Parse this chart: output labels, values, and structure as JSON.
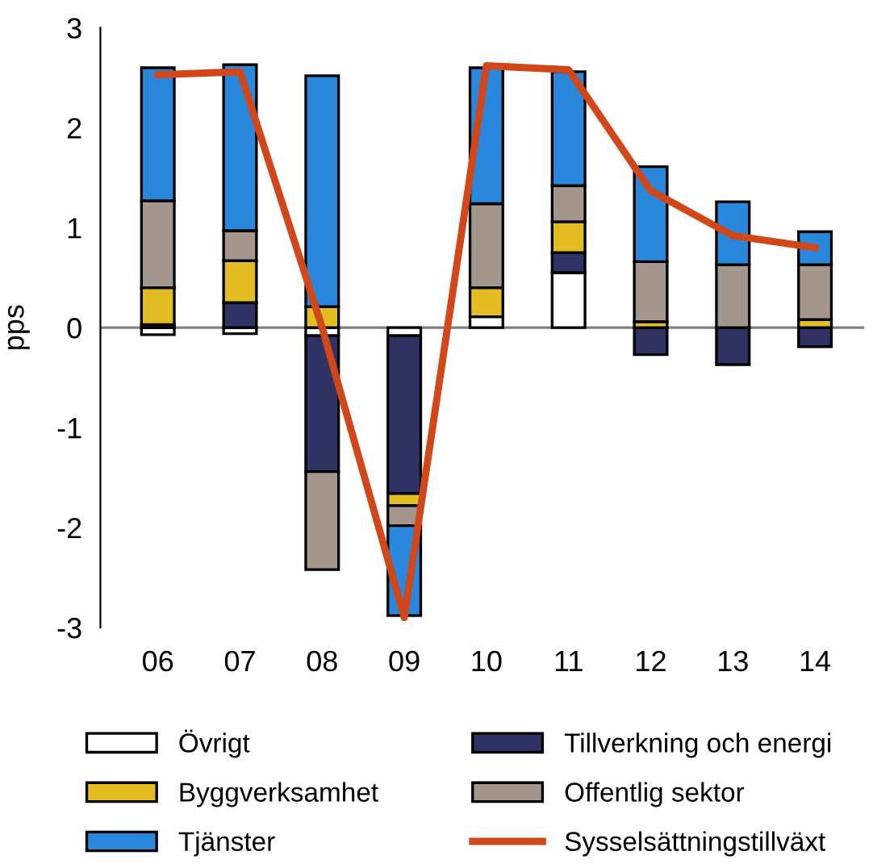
{
  "chart_data": {
    "type": "bar",
    "stacked": true,
    "ylabel": "pps",
    "categories": [
      "06",
      "07",
      "08",
      "09",
      "10",
      "11",
      "12",
      "13",
      "14"
    ],
    "ylim": [
      -3,
      3
    ],
    "yticks": [
      -3,
      -2,
      -1,
      0,
      1,
      2,
      3
    ],
    "grid": false,
    "legend": "bottom",
    "ref_lines": [
      {
        "axis": "y",
        "value": 0,
        "color": "#808080"
      }
    ],
    "series": [
      {
        "name": "Övrigt",
        "color": "#ffffff",
        "values": [
          -0.07,
          -0.06,
          -0.08,
          -0.08,
          0.11,
          0.55,
          null,
          null,
          null
        ]
      },
      {
        "name": "Tillverkning och energi",
        "color": "#2e3363",
        "values": [
          0.03,
          0.25,
          -1.36,
          -1.58,
          null,
          0.2,
          -0.27,
          -0.37,
          -0.19
        ]
      },
      {
        "name": "Byggverksamhet",
        "color": "#e3bd22",
        "values": [
          0.37,
          0.42,
          0.21,
          -0.12,
          0.29,
          0.31,
          0.06,
          null,
          0.08
        ]
      },
      {
        "name": "Offentlig sektor",
        "color": "#a3968d",
        "values": [
          0.87,
          0.3,
          -0.98,
          -0.2,
          0.84,
          0.36,
          0.6,
          0.63,
          0.55
        ]
      },
      {
        "name": "Tjänster",
        "color": "#2a88dc",
        "values": [
          1.33,
          1.66,
          2.31,
          -0.9,
          1.36,
          1.14,
          0.95,
          0.63,
          0.33
        ]
      },
      {
        "name": "Sysselsättningstillväxt",
        "type": "line",
        "color": "#d2471a",
        "values": [
          2.53,
          2.56,
          0.0,
          -2.9,
          2.62,
          2.58,
          1.37,
          0.92,
          0.8
        ]
      }
    ]
  }
}
